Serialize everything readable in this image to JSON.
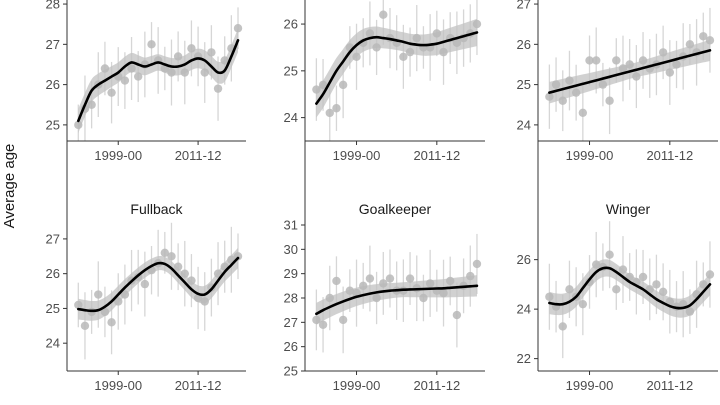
{
  "y_axis_title": "Average age",
  "colors": {
    "band": "#c2c2c2",
    "point": "#b8b8b8",
    "errorbar": "#d6d6d6",
    "smooth": "#000000",
    "axis": "#333333"
  },
  "chart_data": [
    {
      "type": "scatter",
      "panel": 1,
      "title": "",
      "x_tick_labels": [
        "1999-00",
        "2011-12"
      ],
      "x_tick_years": [
        1999,
        2011
      ],
      "ylim": [
        24.6,
        28.2
      ],
      "y_ticks": [
        25,
        26,
        27,
        28
      ],
      "points": [
        [
          1993,
          25.0
        ],
        [
          1994,
          25.4
        ],
        [
          1995,
          25.5
        ],
        [
          1996,
          26.0
        ],
        [
          1997,
          26.4
        ],
        [
          1998,
          25.8
        ],
        [
          1999,
          26.2
        ],
        [
          2000,
          26.1
        ],
        [
          2001,
          26.4
        ],
        [
          2002,
          26.2
        ],
        [
          2003,
          26.5
        ],
        [
          2004,
          27.0
        ],
        [
          2005,
          26.6
        ],
        [
          2006,
          26.4
        ],
        [
          2007,
          26.3
        ],
        [
          2008,
          26.7
        ],
        [
          2009,
          26.3
        ],
        [
          2010,
          26.9
        ],
        [
          2011,
          26.7
        ],
        [
          2012,
          26.3
        ],
        [
          2013,
          26.8
        ],
        [
          2014,
          25.9
        ],
        [
          2015,
          26.6
        ],
        [
          2016,
          26.9
        ],
        [
          2017,
          27.4
        ]
      ],
      "smooth": [
        [
          1993,
          25.1
        ],
        [
          1994,
          25.5
        ],
        [
          1995,
          25.85
        ],
        [
          1996,
          26.0
        ],
        [
          1997,
          26.1
        ],
        [
          1998,
          26.2
        ],
        [
          1999,
          26.3
        ],
        [
          2000,
          26.45
        ],
        [
          2001,
          26.55
        ],
        [
          2002,
          26.5
        ],
        [
          2003,
          26.45
        ],
        [
          2004,
          26.5
        ],
        [
          2005,
          26.55
        ],
        [
          2006,
          26.5
        ],
        [
          2007,
          26.45
        ],
        [
          2008,
          26.45
        ],
        [
          2009,
          26.5
        ],
        [
          2010,
          26.6
        ],
        [
          2011,
          26.65
        ],
        [
          2012,
          26.6
        ],
        [
          2013,
          26.45
        ],
        [
          2014,
          26.3
        ],
        [
          2015,
          26.35
        ],
        [
          2016,
          26.7
        ],
        [
          2017,
          27.1
        ]
      ],
      "band_halfwidth": 0.2
    },
    {
      "type": "scatter",
      "panel": 2,
      "title": "",
      "x_tick_labels": [
        "1999-00",
        "2011-12"
      ],
      "x_tick_years": [
        1999,
        2011
      ],
      "ylim": [
        23.5,
        26.6
      ],
      "y_ticks": [
        24,
        25,
        26
      ],
      "points": [
        [
          1993,
          24.6
        ],
        [
          1994,
          24.7
        ],
        [
          1995,
          24.1
        ],
        [
          1996,
          24.2
        ],
        [
          1997,
          24.7
        ],
        [
          1998,
          25.5
        ],
        [
          1999,
          25.3
        ],
        [
          2000,
          25.6
        ],
        [
          2001,
          25.8
        ],
        [
          2002,
          25.5
        ],
        [
          2003,
          26.2
        ],
        [
          2004,
          25.7
        ],
        [
          2005,
          25.6
        ],
        [
          2006,
          25.3
        ],
        [
          2007,
          25.4
        ],
        [
          2008,
          25.7
        ],
        [
          2009,
          25.5
        ],
        [
          2010,
          25.5
        ],
        [
          2011,
          25.8
        ],
        [
          2012,
          25.4
        ],
        [
          2013,
          25.7
        ],
        [
          2014,
          25.6
        ],
        [
          2015,
          25.7
        ],
        [
          2016,
          25.8
        ],
        [
          2017,
          26.0
        ]
      ],
      "smooth": [
        [
          1993,
          24.3
        ],
        [
          1994,
          24.5
        ],
        [
          1995,
          24.75
        ],
        [
          1996,
          25.0
        ],
        [
          1997,
          25.2
        ],
        [
          1998,
          25.4
        ],
        [
          1999,
          25.55
        ],
        [
          2000,
          25.65
        ],
        [
          2001,
          25.7
        ],
        [
          2002,
          25.72
        ],
        [
          2003,
          25.7
        ],
        [
          2004,
          25.68
        ],
        [
          2005,
          25.65
        ],
        [
          2006,
          25.62
        ],
        [
          2007,
          25.58
        ],
        [
          2008,
          25.56
        ],
        [
          2009,
          25.55
        ],
        [
          2010,
          25.56
        ],
        [
          2011,
          25.58
        ],
        [
          2012,
          25.62
        ],
        [
          2013,
          25.66
        ],
        [
          2014,
          25.7
        ],
        [
          2015,
          25.74
        ],
        [
          2016,
          25.78
        ],
        [
          2017,
          25.82
        ]
      ],
      "band_halfwidth": 0.2
    },
    {
      "type": "scatter",
      "panel": 3,
      "title": "",
      "x_tick_labels": [
        "1999-00",
        "2011-12"
      ],
      "x_tick_years": [
        1999,
        2011
      ],
      "ylim": [
        23.6,
        27.2
      ],
      "y_ticks": [
        24,
        25,
        26,
        27
      ],
      "points": [
        [
          1993,
          24.7
        ],
        [
          1994,
          25.0
        ],
        [
          1995,
          24.6
        ],
        [
          1996,
          25.1
        ],
        [
          1997,
          24.8
        ],
        [
          1998,
          24.3
        ],
        [
          1999,
          25.6
        ],
        [
          2000,
          25.6
        ],
        [
          2001,
          25.0
        ],
        [
          2002,
          24.6
        ],
        [
          2003,
          25.6
        ],
        [
          2004,
          25.4
        ],
        [
          2005,
          25.5
        ],
        [
          2006,
          25.2
        ],
        [
          2007,
          25.6
        ],
        [
          2008,
          25.4
        ],
        [
          2009,
          25.5
        ],
        [
          2010,
          25.8
        ],
        [
          2011,
          25.3
        ],
        [
          2012,
          25.5
        ],
        [
          2013,
          25.7
        ],
        [
          2014,
          26.0
        ],
        [
          2015,
          25.8
        ],
        [
          2016,
          26.2
        ],
        [
          2017,
          26.1
        ]
      ],
      "smooth": [
        [
          1993,
          24.8
        ],
        [
          2017,
          25.85
        ]
      ],
      "band_halfwidth": 0.18
    },
    {
      "type": "scatter",
      "panel": 4,
      "title": "Fullback",
      "x_tick_labels": [
        "1999-00",
        "2011-12"
      ],
      "x_tick_years": [
        1999,
        2011
      ],
      "ylim": [
        23.2,
        27.4
      ],
      "y_ticks": [
        24,
        25,
        26,
        27
      ],
      "points": [
        [
          1993,
          25.1
        ],
        [
          1994,
          24.5
        ],
        [
          1995,
          24.9
        ],
        [
          1996,
          25.4
        ],
        [
          1997,
          24.9
        ],
        [
          1998,
          24.6
        ],
        [
          1999,
          25.2
        ],
        [
          2000,
          25.4
        ],
        [
          2001,
          25.8
        ],
        [
          2002,
          25.9
        ],
        [
          2003,
          25.7
        ],
        [
          2004,
          26.1
        ],
        [
          2005,
          26.3
        ],
        [
          2006,
          26.6
        ],
        [
          2007,
          26.5
        ],
        [
          2008,
          26.2
        ],
        [
          2009,
          26.0
        ],
        [
          2010,
          25.8
        ],
        [
          2011,
          25.3
        ],
        [
          2012,
          25.2
        ],
        [
          2013,
          25.6
        ],
        [
          2014,
          26.0
        ],
        [
          2015,
          26.2
        ],
        [
          2016,
          26.4
        ],
        [
          2017,
          26.5
        ]
      ],
      "smooth": [
        [
          1993,
          24.98
        ],
        [
          1994,
          24.95
        ],
        [
          1995,
          24.93
        ],
        [
          1996,
          24.95
        ],
        [
          1997,
          25.05
        ],
        [
          1998,
          25.2
        ],
        [
          1999,
          25.4
        ],
        [
          2000,
          25.6
        ],
        [
          2001,
          25.78
        ],
        [
          2002,
          25.95
        ],
        [
          2003,
          26.1
        ],
        [
          2004,
          26.22
        ],
        [
          2005,
          26.3
        ],
        [
          2006,
          26.28
        ],
        [
          2007,
          26.15
        ],
        [
          2008,
          25.95
        ],
        [
          2009,
          25.75
        ],
        [
          2010,
          25.55
        ],
        [
          2011,
          25.42
        ],
        [
          2012,
          25.4
        ],
        [
          2013,
          25.55
        ],
        [
          2014,
          25.8
        ],
        [
          2015,
          26.05
        ],
        [
          2016,
          26.25
        ],
        [
          2017,
          26.45
        ]
      ],
      "band_halfwidth": 0.2
    },
    {
      "type": "scatter",
      "panel": 5,
      "title": "Goalkeeper",
      "x_tick_labels": [
        "1999-00",
        "2011-12"
      ],
      "x_tick_years": [
        1999,
        2011
      ],
      "ylim": [
        25,
        31
      ],
      "y_ticks": [
        25,
        26,
        27,
        28,
        29,
        30,
        31
      ],
      "points": [
        [
          1993,
          27.1
        ],
        [
          1994,
          26.9
        ],
        [
          1995,
          28.0
        ],
        [
          1996,
          28.7
        ],
        [
          1997,
          27.1
        ],
        [
          1998,
          28.3
        ],
        [
          1999,
          28.2
        ],
        [
          2000,
          28.5
        ],
        [
          2001,
          28.8
        ],
        [
          2002,
          28.0
        ],
        [
          2003,
          28.6
        ],
        [
          2004,
          28.8
        ],
        [
          2005,
          28.3
        ],
        [
          2006,
          28.3
        ],
        [
          2007,
          28.8
        ],
        [
          2008,
          28.4
        ],
        [
          2009,
          28.0
        ],
        [
          2010,
          28.6
        ],
        [
          2011,
          28.3
        ],
        [
          2012,
          28.2
        ],
        [
          2013,
          28.7
        ],
        [
          2014,
          27.3
        ],
        [
          2015,
          28.5
        ],
        [
          2016,
          28.9
        ],
        [
          2017,
          29.4
        ]
      ],
      "smooth": [
        [
          1993,
          27.35
        ],
        [
          1994,
          27.5
        ],
        [
          1995,
          27.63
        ],
        [
          1996,
          27.75
        ],
        [
          1997,
          27.86
        ],
        [
          1998,
          27.96
        ],
        [
          1999,
          28.05
        ],
        [
          2000,
          28.12
        ],
        [
          2001,
          28.18
        ],
        [
          2002,
          28.23
        ],
        [
          2003,
          28.27
        ],
        [
          2004,
          28.3
        ],
        [
          2005,
          28.32
        ],
        [
          2006,
          28.34
        ],
        [
          2007,
          28.35
        ],
        [
          2008,
          28.36
        ],
        [
          2009,
          28.37
        ],
        [
          2010,
          28.38
        ],
        [
          2011,
          28.39
        ],
        [
          2012,
          28.4
        ],
        [
          2013,
          28.42
        ],
        [
          2014,
          28.44
        ],
        [
          2015,
          28.46
        ],
        [
          2016,
          28.48
        ],
        [
          2017,
          28.5
        ]
      ],
      "band_halfwidth": 0.3
    },
    {
      "type": "scatter",
      "panel": 6,
      "title": "Winger",
      "x_tick_labels": [
        "1999-00",
        "2011-12"
      ],
      "x_tick_years": [
        1999,
        2011
      ],
      "ylim": [
        21.5,
        27.4
      ],
      "y_ticks": [
        22,
        24,
        26
      ],
      "points": [
        [
          1993,
          24.5
        ],
        [
          1994,
          24.1
        ],
        [
          1995,
          23.3
        ],
        [
          1996,
          24.8
        ],
        [
          1997,
          24.5
        ],
        [
          1998,
          24.2
        ],
        [
          1999,
          25.1
        ],
        [
          2000,
          25.8
        ],
        [
          2001,
          25.7
        ],
        [
          2002,
          26.2
        ],
        [
          2003,
          24.8
        ],
        [
          2004,
          25.6
        ],
        [
          2005,
          25.3
        ],
        [
          2006,
          25.1
        ],
        [
          2007,
          25.3
        ],
        [
          2008,
          24.8
        ],
        [
          2009,
          25.0
        ],
        [
          2010,
          24.7
        ],
        [
          2011,
          24.3
        ],
        [
          2012,
          24.1
        ],
        [
          2013,
          24.2
        ],
        [
          2014,
          23.9
        ],
        [
          2015,
          24.6
        ],
        [
          2016,
          25.0
        ],
        [
          2017,
          25.4
        ]
      ],
      "smooth": [
        [
          1993,
          24.25
        ],
        [
          1994,
          24.2
        ],
        [
          1995,
          24.2
        ],
        [
          1996,
          24.3
        ],
        [
          1997,
          24.5
        ],
        [
          1998,
          24.85
        ],
        [
          1999,
          25.2
        ],
        [
          2000,
          25.5
        ],
        [
          2001,
          25.65
        ],
        [
          2002,
          25.65
        ],
        [
          2003,
          25.5
        ],
        [
          2004,
          25.3
        ],
        [
          2005,
          25.1
        ],
        [
          2006,
          24.95
        ],
        [
          2007,
          24.8
        ],
        [
          2008,
          24.6
        ],
        [
          2009,
          24.4
        ],
        [
          2010,
          24.25
        ],
        [
          2011,
          24.12
        ],
        [
          2012,
          24.05
        ],
        [
          2013,
          24.05
        ],
        [
          2014,
          24.15
        ],
        [
          2015,
          24.4
        ],
        [
          2016,
          24.7
        ],
        [
          2017,
          25.0
        ]
      ],
      "band_halfwidth": 0.3
    }
  ]
}
